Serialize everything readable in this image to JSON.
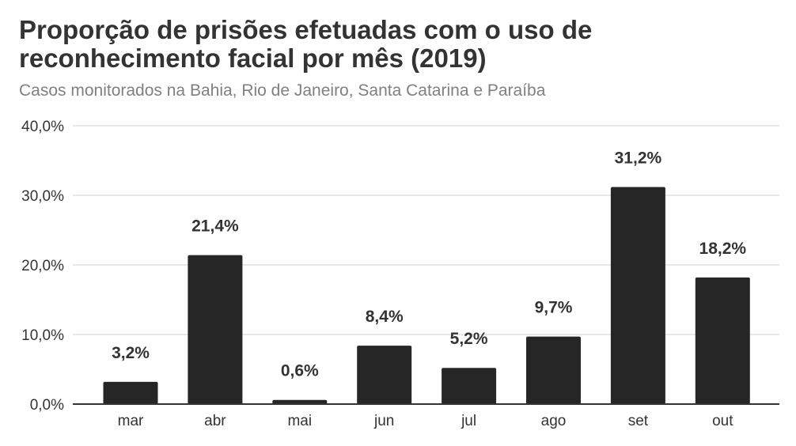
{
  "colors": {
    "bar": "#262626",
    "grid": "#d9d9d9",
    "axis": "#333333",
    "text": "#333333",
    "subtitle": "#808080"
  },
  "chart_data": {
    "type": "bar",
    "title": "Proporção de prisões efetuadas com o uso de reconhecimento facial por mês (2019)",
    "subtitle": "Casos monitorados na Bahia, Rio de Janeiro, Santa Catarina e Paraíba",
    "xlabel": "",
    "ylabel": "",
    "categories": [
      "mar",
      "abr",
      "mai",
      "jun",
      "jul",
      "ago",
      "set",
      "out"
    ],
    "values": [
      3.2,
      21.4,
      0.6,
      8.4,
      5.2,
      9.7,
      31.2,
      18.2
    ],
    "value_labels": [
      "3,2%",
      "21,4%",
      "0,6%",
      "8,4%",
      "5,2%",
      "9,7%",
      "31,2%",
      "18,2%"
    ],
    "ylim": [
      0,
      40
    ],
    "yticks": [
      0,
      10,
      20,
      30,
      40
    ],
    "ytick_labels": [
      "0,0%",
      "10,0%",
      "20,0%",
      "30,0%",
      "40,0%"
    ],
    "grid": true,
    "legend": "none"
  }
}
